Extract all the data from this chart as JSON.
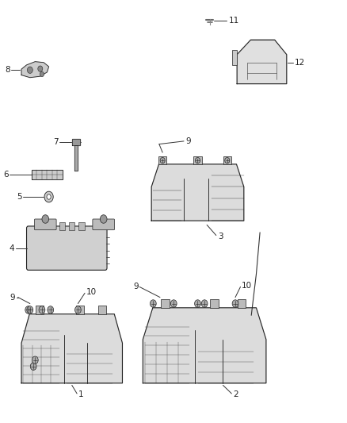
{
  "title": "",
  "background_color": "#ffffff",
  "figsize": [
    4.38,
    5.33
  ],
  "dpi": 100,
  "line_color": "#222222",
  "label_color": "#222222",
  "font_size": 7.5,
  "parts": [
    {
      "id": 11,
      "label": "11"
    },
    {
      "id": 12,
      "label": "12"
    },
    {
      "id": 8,
      "label": "8"
    },
    {
      "id": 7,
      "label": "7"
    },
    {
      "id": 6,
      "label": "6"
    },
    {
      "id": 5,
      "label": "5"
    },
    {
      "id": 9,
      "label": "9"
    },
    {
      "id": 3,
      "label": "3"
    },
    {
      "id": 4,
      "label": "4"
    },
    {
      "id": 10,
      "label": "10"
    },
    {
      "id": 1,
      "label": "1"
    },
    {
      "id": 2,
      "label": "2"
    }
  ]
}
